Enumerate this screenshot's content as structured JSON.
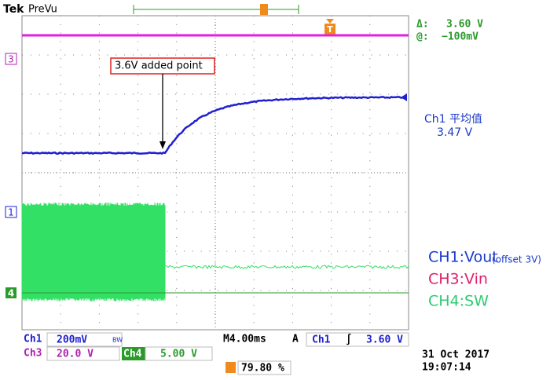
{
  "header": {
    "brand": "Tek",
    "mode": "PreVu"
  },
  "cursor": {
    "delta_label": "Δ:",
    "delta_value": "3.60 V",
    "at_label": "@:",
    "at_value": "−100mV"
  },
  "annotation": "3.6V added point",
  "measurement": {
    "label": "Ch1 平均值",
    "value": "3.47 V"
  },
  "channel_markers": {
    "ch3": "3",
    "ch1": "1",
    "ch4": "4"
  },
  "trigger_marker": "T",
  "legend": [
    {
      "text": "CH1:Vout",
      "note": "(offset 3V)"
    },
    {
      "text": "CH3:Vin"
    },
    {
      "text": "CH4:SW"
    }
  ],
  "status": {
    "ch1": "Ch1",
    "ch1_scale": "200mV",
    "bw": "BW",
    "ch3": "Ch3",
    "ch3_scale": "20.0 V",
    "ch4": "Ch4",
    "ch4_scale": "5.00 V",
    "timebase": "M4.00ms",
    "acq": "A",
    "trig_source": "Ch1",
    "trig_slope": "∫",
    "trig_level": "3.60 V",
    "trig_pos": "79.80 %",
    "date": "31 Oct  2017",
    "time": "19:07:14"
  }
}
